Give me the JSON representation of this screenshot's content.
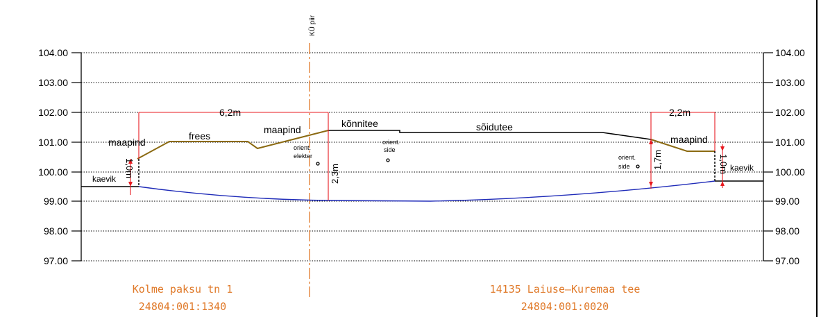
{
  "elevation_axis": {
    "labels": [
      "104.00",
      "103.00",
      "102.00",
      "101.00",
      "100.00",
      "99.00",
      "98.00",
      "97.00"
    ]
  },
  "boundary_label": "KÜ piir",
  "surface_labels": {
    "maapind_left": "maapind",
    "frees": "frees",
    "maapind_center": "maapind",
    "konnitee": "kõnnitee",
    "soidutee": "sõidutee",
    "maapind_right": "maapind",
    "kaevik_left": "kaevik",
    "kaevik_right": "kaevik"
  },
  "dimensions": {
    "width_left": "6,2m",
    "width_right": "2,2m",
    "depth_left": "1,0m",
    "depth_center": "2,3m",
    "depth_right_mid": "1,7m",
    "depth_right": "1,0m"
  },
  "utilities": {
    "elekter_line1": "orient.",
    "elekter_line2": "elekter",
    "side_center_line1": "orient.",
    "side_center_line2": "side",
    "side_right_line1": "orient.",
    "side_right_line2": "side"
  },
  "parcels": {
    "left_name": "Kolme paksu tn 1",
    "left_code": "24804:001:1340",
    "right_name": "14135 Laiuse–Kuremaa tee",
    "right_code": "24804:001:0020"
  },
  "colors": {
    "ground": "#8b6a12",
    "pipe": "#1f2bb8",
    "dimension": "#e8191f",
    "boundary": "#e07a2a",
    "parcel_text": "#e07a2a",
    "grid": "#000000"
  }
}
